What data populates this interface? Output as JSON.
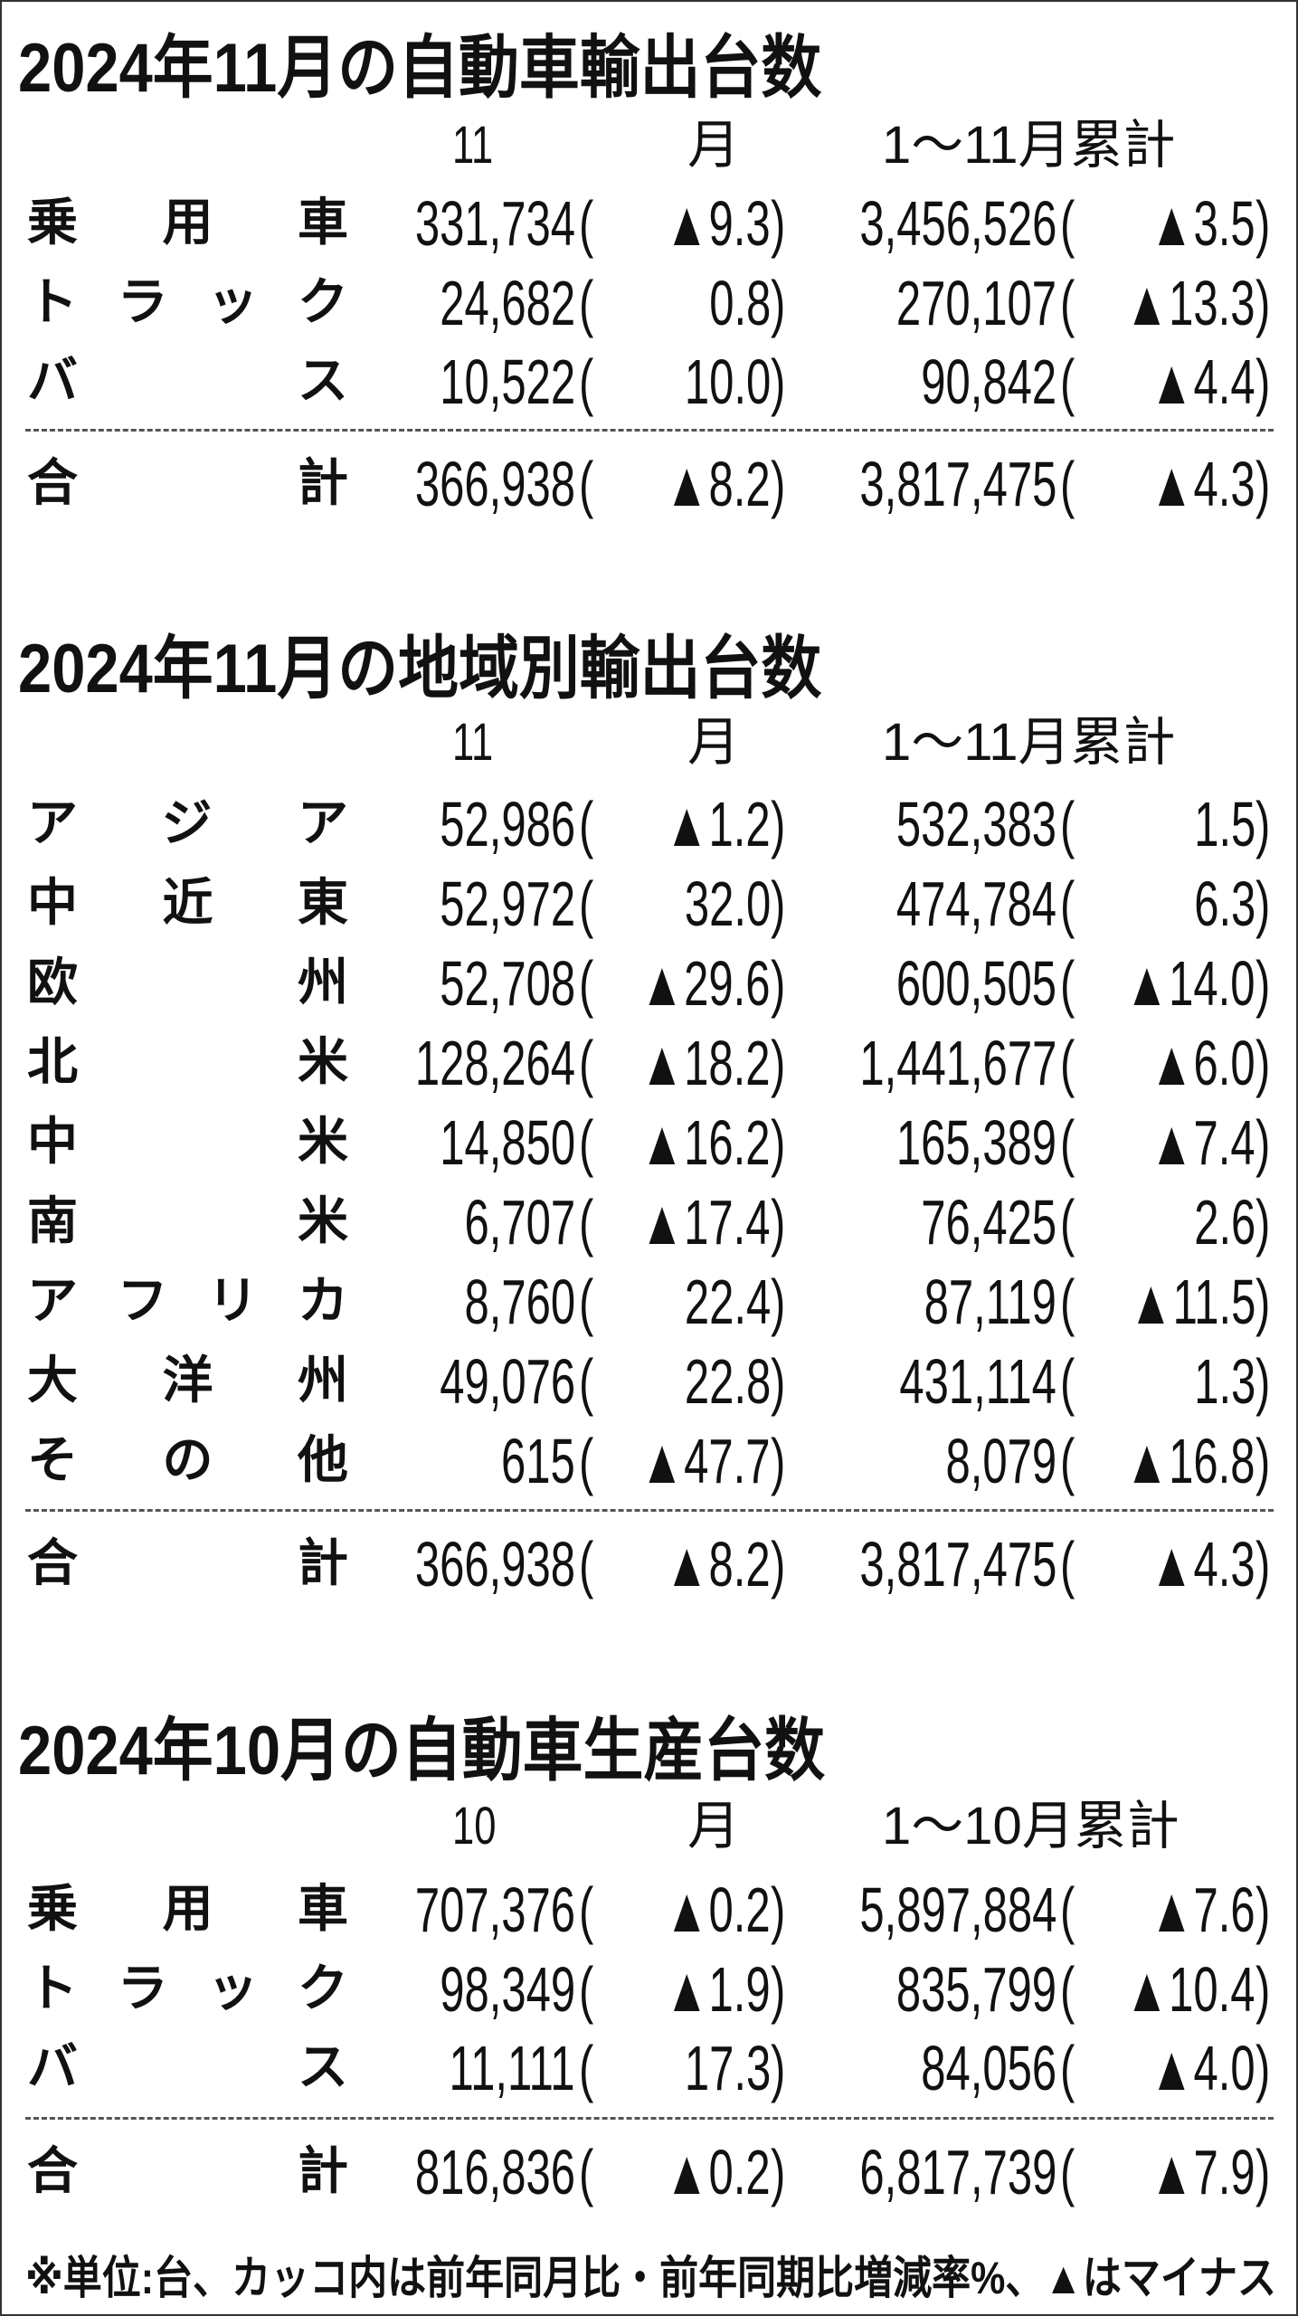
{
  "sections": [
    {
      "title": "2024年11月の自動車輸出台数",
      "header": [
        "11",
        "月",
        "1～11月累計"
      ],
      "rows": [
        {
          "label": "乗用車",
          "month": "331,734",
          "month_rate": "▲9.3",
          "cumulative": "3,456,526",
          "cumulative_rate": "▲3.5"
        },
        {
          "label": "トラック",
          "month": "24,682",
          "month_rate": "0.8",
          "cumulative": "270,107",
          "cumulative_rate": "▲13.3"
        },
        {
          "label": "バス",
          "month": "10,522",
          "month_rate": "10.0",
          "cumulative": "90,842",
          "cumulative_rate": "▲4.4"
        }
      ],
      "total": {
        "label": "合計",
        "month": "366,938",
        "month_rate": "▲8.2",
        "cumulative": "3,817,475",
        "cumulative_rate": "▲4.3"
      }
    },
    {
      "title": "2024年11月の地域別輸出台数",
      "header": [
        "11",
        "月",
        "1～11月累計"
      ],
      "rows": [
        {
          "label": "アジア",
          "month": "52,986",
          "month_rate": "▲1.2",
          "cumulative": "532,383",
          "cumulative_rate": "1.5"
        },
        {
          "label": "中近東",
          "month": "52,972",
          "month_rate": "32.0",
          "cumulative": "474,784",
          "cumulative_rate": "6.3"
        },
        {
          "label": "欧州",
          "month": "52,708",
          "month_rate": "▲29.6",
          "cumulative": "600,505",
          "cumulative_rate": "▲14.0"
        },
        {
          "label": "北米",
          "month": "128,264",
          "month_rate": "▲18.2",
          "cumulative": "1,441,677",
          "cumulative_rate": "▲6.0"
        },
        {
          "label": "中米",
          "month": "14,850",
          "month_rate": "▲16.2",
          "cumulative": "165,389",
          "cumulative_rate": "▲7.4"
        },
        {
          "label": "南米",
          "month": "6,707",
          "month_rate": "▲17.4",
          "cumulative": "76,425",
          "cumulative_rate": "2.6"
        },
        {
          "label": "アフリカ",
          "month": "8,760",
          "month_rate": "22.4",
          "cumulative": "87,119",
          "cumulative_rate": "▲11.5"
        },
        {
          "label": "大洋州",
          "month": "49,076",
          "month_rate": "22.8",
          "cumulative": "431,114",
          "cumulative_rate": "1.3"
        },
        {
          "label": "その他",
          "month": "615",
          "month_rate": "▲47.7",
          "cumulative": "8,079",
          "cumulative_rate": "▲16.8"
        }
      ],
      "total": {
        "label": "合計",
        "month": "366,938",
        "month_rate": "▲8.2",
        "cumulative": "3,817,475",
        "cumulative_rate": "▲4.3"
      }
    },
    {
      "title": "2024年10月の自動車生産台数",
      "header": [
        "10",
        "月",
        "1～10月累計"
      ],
      "rows": [
        {
          "label": "乗用車",
          "month": "707,376",
          "month_rate": "▲0.2",
          "cumulative": "5,897,884",
          "cumulative_rate": "▲7.6"
        },
        {
          "label": "トラック",
          "month": "98,349",
          "month_rate": "▲1.9",
          "cumulative": "835,799",
          "cumulative_rate": "▲10.4"
        },
        {
          "label": "バス",
          "month": "11,111",
          "month_rate": "17.3",
          "cumulative": "84,056",
          "cumulative_rate": "▲4.0"
        }
      ],
      "total": {
        "label": "合計",
        "month": "816,836",
        "month_rate": "▲0.2",
        "cumulative": "6,817,739",
        "cumulative_rate": "▲7.9"
      }
    }
  ],
  "footnote": "※単位:台、カッコ内は前年同月比・前年同期比増減率%、▲はマイナス"
}
